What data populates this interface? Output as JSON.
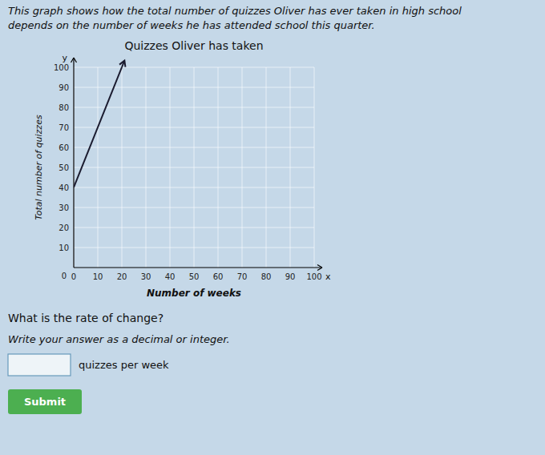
{
  "page_background": "#c5d8e8",
  "header": [
    "This graph shows how the total number of quizzes Oliver has ever taken in high school",
    "depends on the number of weeks he has attended school this quarter."
  ],
  "question": "What is the rate of change?",
  "instruction": "Write your answer as a decimal or integer.",
  "input_label": "quizzes per week",
  "submit_text": "Submit",
  "submit_color": "#4caf50",
  "chart_data": {
    "type": "line",
    "title": "Quizzes Oliver has taken",
    "x_label": "Number of weeks",
    "y_label": "Total number of quizzes",
    "x": [
      0,
      20
    ],
    "series": [
      {
        "values": [
          40,
          100
        ],
        "color": "#1a1a2e"
      }
    ],
    "xlim": [
      0,
      100
    ],
    "ylim": [
      0,
      100
    ],
    "xticks": [
      0,
      10,
      20,
      30,
      40,
      50,
      60,
      70,
      80,
      90,
      100
    ],
    "yticks": [
      10,
      20,
      30,
      40,
      50,
      60,
      70,
      80,
      90,
      100
    ],
    "grid": true,
    "annotations": {
      "y_axis_end": "y",
      "x_axis_end": "x",
      "origin": "0"
    }
  }
}
